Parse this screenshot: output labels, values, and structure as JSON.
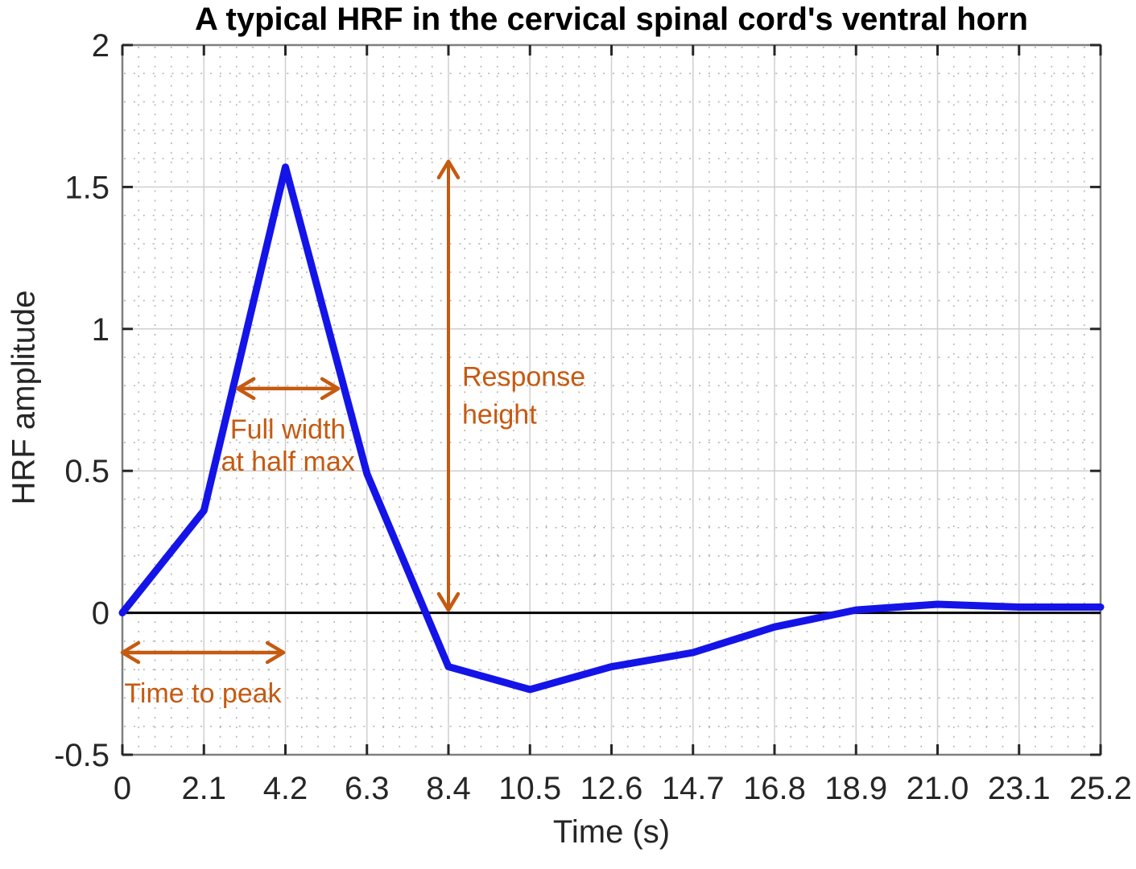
{
  "chart_data": {
    "type": "line",
    "title": "A typical HRF in the cervical spinal cord's ventral horn",
    "xlabel": "Time (s)",
    "ylabel": "HRF amplitude",
    "x": [
      0,
      2.1,
      4.2,
      6.3,
      8.4,
      10.5,
      12.6,
      14.7,
      16.8,
      18.9,
      21.0,
      23.1,
      25.2
    ],
    "y": [
      0,
      0.36,
      1.57,
      0.49,
      -0.19,
      -0.27,
      -0.19,
      -0.14,
      -0.05,
      0.01,
      0.03,
      0.02,
      0.02
    ],
    "xlim": [
      0,
      25.2
    ],
    "ylim": [
      -0.5,
      2
    ],
    "xticks": [
      0,
      2.1,
      4.2,
      6.3,
      8.4,
      10.5,
      12.6,
      14.7,
      16.8,
      18.9,
      21.0,
      23.1,
      25.2
    ],
    "xtick_labels": [
      "0",
      "2.1",
      "4.2",
      "6.3",
      "8.4",
      "10.5",
      "12.6",
      "14.7",
      "16.8",
      "18.9",
      "21.0",
      "23.1",
      "25.2"
    ],
    "yticks": [
      -0.5,
      0,
      0.5,
      1,
      1.5,
      2
    ],
    "ytick_labels": [
      "-0.5",
      "0",
      "0.5",
      "1",
      "1.5",
      "2"
    ],
    "grid": {
      "major": "solid",
      "minor": "dotted",
      "x_minor_step": 0.42,
      "y_minor_step": 0.1
    },
    "zero_line": true,
    "legend": "none",
    "colors": {
      "line": "#1414e8",
      "annotation": "#c55a11",
      "zero_line": "#000000",
      "axis_border": "#7f7f7f",
      "tick": "#262626",
      "grid_major": "#cfcfcf",
      "grid_minor": "#a3a3a3"
    },
    "annotations": [
      {
        "name": "fwhm",
        "type": "h-arrow",
        "x1": 2.97,
        "x2": 5.56,
        "y": 0.79,
        "label": [
          "Full width",
          "at half max"
        ],
        "label_align": "center-below"
      },
      {
        "name": "response-height",
        "type": "v-arrow",
        "x": 8.4,
        "y1": 0.01,
        "y2": 1.59,
        "label": [
          "Response",
          "height"
        ],
        "label_align": "right-of-middle"
      },
      {
        "name": "time-to-peak",
        "type": "h-arrow",
        "x1": 0,
        "x2": 4.15,
        "y": -0.14,
        "label": [
          "Time to peak"
        ],
        "label_align": "center-below"
      }
    ]
  }
}
